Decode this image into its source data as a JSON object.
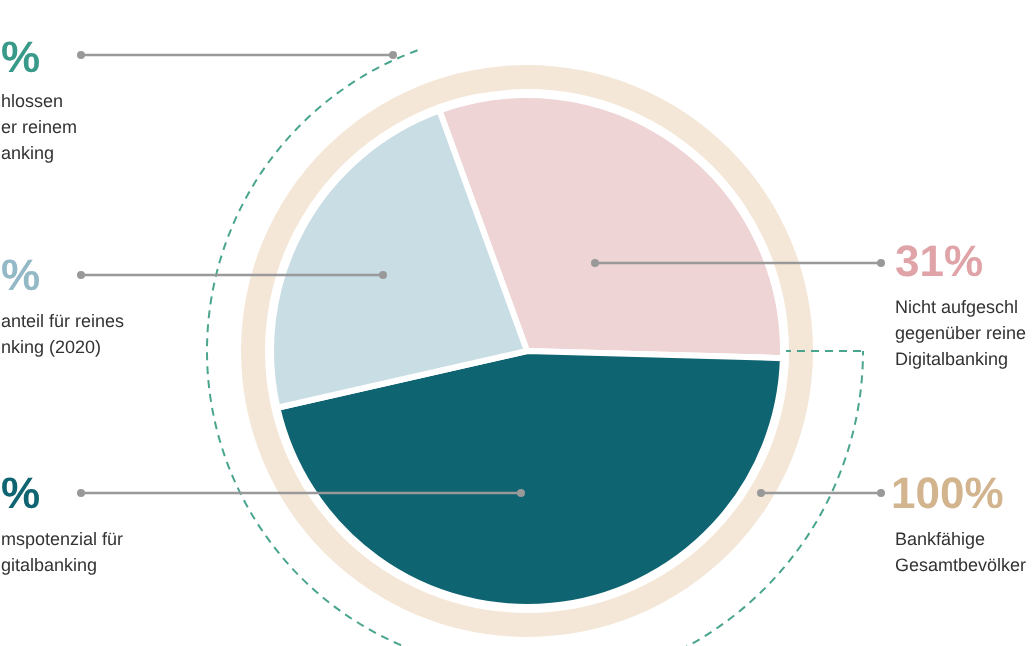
{
  "chart_data": {
    "type": "pie",
    "categories": [
      null,
      null,
      null
    ],
    "values": [
      31,
      46,
      23
    ],
    "colors": [
      "#efd4d5",
      "#0f6471",
      "#c9dde4"
    ],
    "value_labels": [
      "31%",
      null,
      null
    ],
    "annotations": [
      "%",
      "hlossen\ner reinem\nanking",
      "%",
      "anteil für reines\nnking (2020)",
      "%",
      "mspotenzial für\ngitalbanking",
      "Nicht aufgeschl\ngegenüber reine\nDigitalbanking",
      "100%",
      "Bankfähige\nGesamtbevölker"
    ]
  }
}
